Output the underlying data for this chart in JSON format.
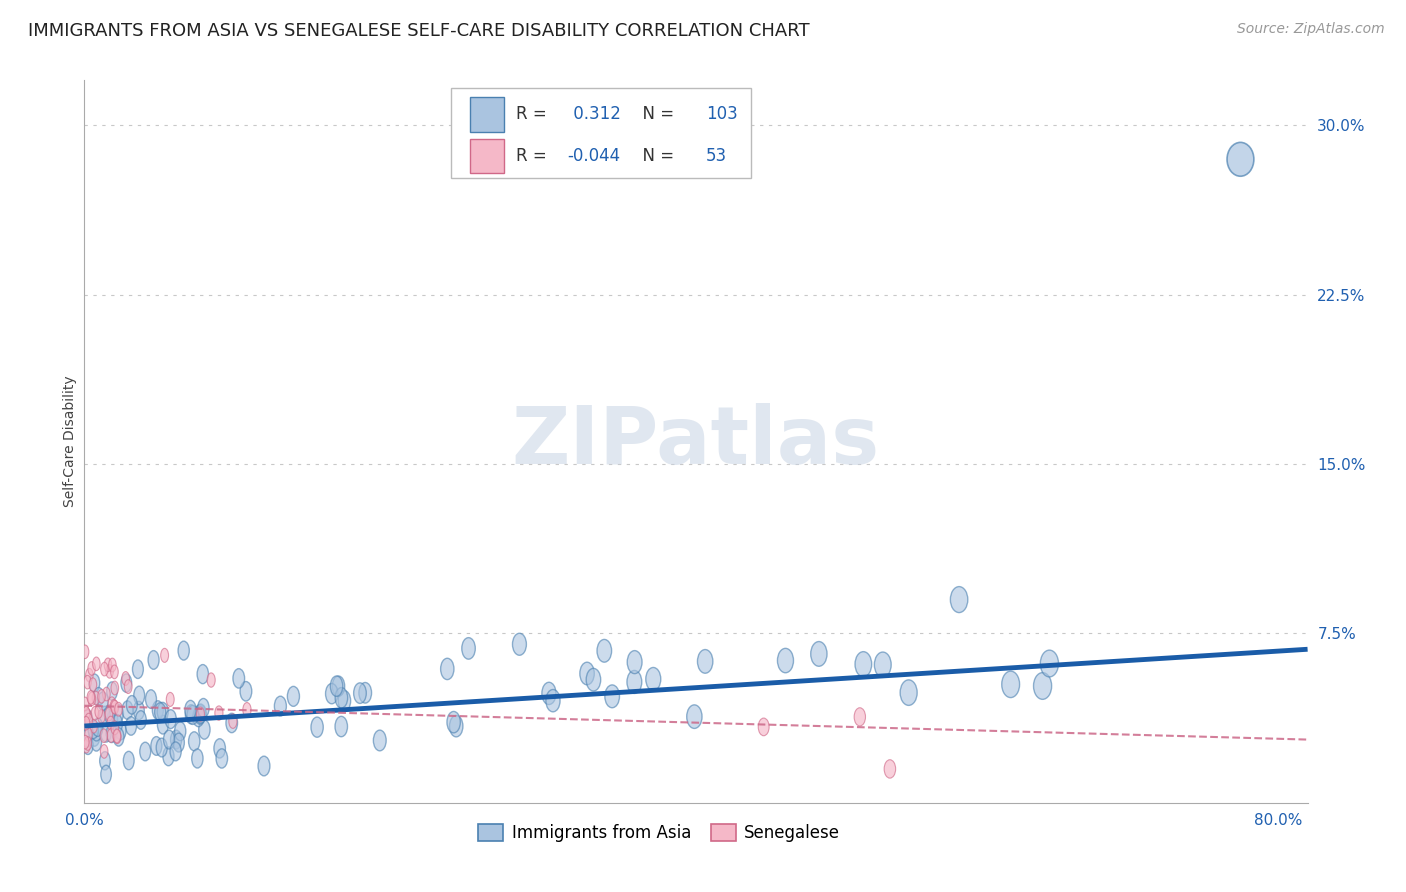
{
  "title": "IMMIGRANTS FROM ASIA VS SENEGALESE SELF-CARE DISABILITY CORRELATION CHART",
  "source": "Source: ZipAtlas.com",
  "ylabel": "Self-Care Disability",
  "xlim": [
    0.0,
    0.82
  ],
  "ylim": [
    0.0,
    0.32
  ],
  "xticks": [
    0.0,
    0.8
  ],
  "xticklabels": [
    "0.0%",
    "80.0%"
  ],
  "yticks": [
    0.0,
    0.075,
    0.15,
    0.225,
    0.3
  ],
  "yticklabels": [
    "",
    "7.5%",
    "15.0%",
    "22.5%",
    "30.0%"
  ],
  "grid_color": "#c8c8c8",
  "background_color": "#ffffff",
  "asia_color": "#aac4e0",
  "asia_edge_color": "#4a80b0",
  "senegal_color": "#f5b8c8",
  "senegal_edge_color": "#d06888",
  "trend_asia_color": "#1a5ca8",
  "trend_senegal_color": "#cc6888",
  "R_asia": 0.312,
  "N_asia": 103,
  "R_senegal": -0.044,
  "N_senegal": 53,
  "legend_labels": [
    "Immigrants from Asia",
    "Senegalese"
  ],
  "title_fontsize": 13,
  "axis_label_fontsize": 10,
  "tick_fontsize": 11,
  "source_fontsize": 10,
  "watermark": "ZIPatlas",
  "asia_trend_x0": 0.0,
  "asia_trend_y0": 0.034,
  "asia_trend_x1": 0.82,
  "asia_trend_y1": 0.068,
  "senegal_trend_x0": 0.0,
  "senegal_trend_y0": 0.043,
  "senegal_trend_x1": 0.82,
  "senegal_trend_y1": 0.028
}
